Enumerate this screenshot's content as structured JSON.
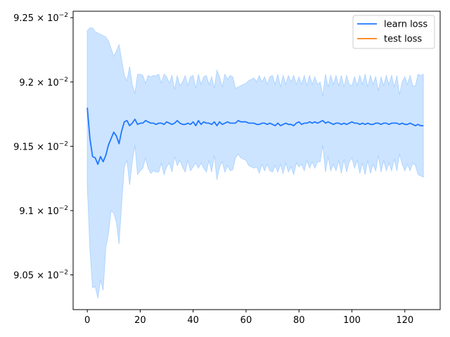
{
  "chart_data": {
    "type": "line",
    "title": "",
    "xlabel": "",
    "ylabel": "",
    "xlim": [
      -5.35,
      133.35
    ],
    "ylim": [
      0.09023,
      0.09255
    ],
    "x_ticks": [
      0,
      20,
      40,
      60,
      80,
      100,
      120
    ],
    "y_ticks": [
      {
        "value": 0.0905,
        "mantissa": "9.05",
        "exponent": "-2"
      },
      {
        "value": 0.091,
        "mantissa": "9.1",
        "exponent": "-2"
      },
      {
        "value": 0.0915,
        "mantissa": "9.15",
        "exponent": "-2"
      },
      {
        "value": 0.092,
        "mantissa": "9.2",
        "exponent": "-2"
      },
      {
        "value": 0.0925,
        "mantissa": "9.25",
        "exponent": "-2"
      }
    ],
    "tick_base": "10",
    "legend": {
      "placement": "top-right",
      "entries": [
        "learn loss",
        "test loss"
      ]
    },
    "colors": {
      "learn": "#1f77ff",
      "test": "#ff7f0e",
      "band": "#cce4ff",
      "band_edge": "#a8d0ff"
    },
    "series": [
      {
        "name": "learn loss",
        "x": [
          0,
          1,
          2,
          3,
          4,
          5,
          6,
          7,
          8,
          9,
          10,
          11,
          12,
          13,
          14,
          15,
          16,
          17,
          18,
          19,
          20,
          21,
          22,
          23,
          24,
          25,
          26,
          27,
          28,
          29,
          30,
          31,
          32,
          33,
          34,
          35,
          36,
          37,
          38,
          39,
          40,
          41,
          42,
          43,
          44,
          45,
          46,
          47,
          48,
          49,
          50,
          51,
          52,
          53,
          54,
          55,
          56,
          57,
          58,
          59,
          60,
          61,
          62,
          63,
          64,
          65,
          66,
          67,
          68,
          69,
          70,
          71,
          72,
          73,
          74,
          75,
          76,
          77,
          78,
          79,
          80,
          81,
          82,
          83,
          84,
          85,
          86,
          87,
          88,
          89,
          90,
          91,
          92,
          93,
          94,
          95,
          96,
          97,
          98,
          99,
          100,
          101,
          102,
          103,
          104,
          105,
          106,
          107,
          108,
          109,
          110,
          111,
          112,
          113,
          114,
          115,
          116,
          117,
          118,
          119,
          120,
          121,
          122,
          123,
          124,
          125,
          126,
          127
        ],
        "values": [
          0.0918,
          0.09156,
          0.09142,
          0.09141,
          0.09136,
          0.09142,
          0.09138,
          0.09143,
          0.09151,
          0.09156,
          0.09161,
          0.09158,
          0.09152,
          0.09162,
          0.09169,
          0.0917,
          0.09166,
          0.09168,
          0.09171,
          0.09167,
          0.09168,
          0.09168,
          0.0917,
          0.09169,
          0.09168,
          0.09168,
          0.09167,
          0.09168,
          0.09168,
          0.09167,
          0.09169,
          0.09168,
          0.09167,
          0.09168,
          0.0917,
          0.09168,
          0.09167,
          0.09167,
          0.09168,
          0.09167,
          0.09169,
          0.09166,
          0.0917,
          0.09167,
          0.09169,
          0.09168,
          0.09168,
          0.09167,
          0.09169,
          0.09166,
          0.09169,
          0.09167,
          0.09168,
          0.09169,
          0.09168,
          0.09168,
          0.09168,
          0.0917,
          0.09169,
          0.09169,
          0.09169,
          0.09168,
          0.09168,
          0.09168,
          0.09167,
          0.09167,
          0.09168,
          0.09168,
          0.09167,
          0.09168,
          0.09167,
          0.09166,
          0.09168,
          0.09166,
          0.09167,
          0.09168,
          0.09167,
          0.09167,
          0.09166,
          0.09168,
          0.09169,
          0.09167,
          0.09168,
          0.09168,
          0.09169,
          0.09168,
          0.09169,
          0.09168,
          0.09169,
          0.0917,
          0.09168,
          0.09169,
          0.09168,
          0.09167,
          0.09168,
          0.09168,
          0.09167,
          0.09168,
          0.09167,
          0.09168,
          0.09169,
          0.09168,
          0.09168,
          0.09167,
          0.09168,
          0.09167,
          0.09168,
          0.09167,
          0.09167,
          0.09168,
          0.09168,
          0.09167,
          0.09168,
          0.09168,
          0.09167,
          0.09168,
          0.09168,
          0.09168,
          0.09167,
          0.09168,
          0.09167,
          0.09167,
          0.09168,
          0.09167,
          0.09166,
          0.09167,
          0.09166,
          0.09166
        ],
        "upper": [
          0.0924,
          0.09242,
          0.09242,
          0.09239,
          0.09238,
          0.09237,
          0.09236,
          0.09235,
          0.09232,
          0.09226,
          0.0922,
          0.09224,
          0.09229,
          0.09217,
          0.09205,
          0.09201,
          0.09212,
          0.09198,
          0.09191,
          0.09206,
          0.09206,
          0.09205,
          0.09199,
          0.09205,
          0.09204,
          0.09205,
          0.09205,
          0.09206,
          0.09199,
          0.09206,
          0.09204,
          0.09199,
          0.09205,
          0.09194,
          0.09205,
          0.09197,
          0.092,
          0.09205,
          0.09197,
          0.09204,
          0.09205,
          0.09195,
          0.09206,
          0.09198,
          0.09204,
          0.09205,
          0.09198,
          0.09204,
          0.09195,
          0.09209,
          0.09204,
          0.09196,
          0.09206,
          0.09202,
          0.09205,
          0.09204,
          0.09195,
          0.09196,
          0.09197,
          0.09198,
          0.09199,
          0.09201,
          0.09202,
          0.09203,
          0.092,
          0.09205,
          0.092,
          0.09204,
          0.09198,
          0.09204,
          0.09205,
          0.09198,
          0.09206,
          0.09196,
          0.09205,
          0.09198,
          0.09205,
          0.092,
          0.09205,
          0.09198,
          0.09204,
          0.09198,
          0.09205,
          0.09197,
          0.09205,
          0.09198,
          0.09204,
          0.09198,
          0.092,
          0.09189,
          0.09206,
          0.09196,
          0.09205,
          0.09198,
          0.09205,
          0.09197,
          0.09205,
          0.09196,
          0.09205,
          0.09198,
          0.09197,
          0.09204,
          0.09197,
          0.09205,
          0.09198,
          0.09206,
          0.09196,
          0.09205,
          0.09198,
          0.09204,
          0.09193,
          0.09204,
          0.09197,
          0.09205,
          0.09198,
          0.09205,
          0.09196,
          0.09205,
          0.0919,
          0.092,
          0.09204,
          0.09198,
          0.09205,
          0.09197,
          0.09197,
          0.09206,
          0.09205,
          0.09206
        ],
        "lower": [
          0.0912,
          0.0907,
          0.0904,
          0.09041,
          0.09032,
          0.09046,
          0.09038,
          0.09071,
          0.09082,
          0.091,
          0.09098,
          0.09091,
          0.09074,
          0.09106,
          0.09134,
          0.09139,
          0.0912,
          0.09138,
          0.09151,
          0.09128,
          0.09131,
          0.09133,
          0.09141,
          0.09133,
          0.09129,
          0.09131,
          0.0913,
          0.0913,
          0.09137,
          0.09128,
          0.09134,
          0.09137,
          0.0913,
          0.09142,
          0.09135,
          0.09139,
          0.09134,
          0.0913,
          0.09139,
          0.09131,
          0.09134,
          0.09137,
          0.09133,
          0.09137,
          0.09133,
          0.0913,
          0.09139,
          0.0913,
          0.09143,
          0.09124,
          0.09134,
          0.09138,
          0.0913,
          0.09135,
          0.09131,
          0.09132,
          0.09141,
          0.09144,
          0.09141,
          0.0914,
          0.09139,
          0.09135,
          0.09134,
          0.09133,
          0.09134,
          0.09129,
          0.09136,
          0.09131,
          0.09136,
          0.09131,
          0.0913,
          0.09135,
          0.0913,
          0.09136,
          0.09129,
          0.09137,
          0.0913,
          0.09134,
          0.09128,
          0.09137,
          0.09134,
          0.09136,
          0.09131,
          0.09139,
          0.09133,
          0.09138,
          0.09133,
          0.09138,
          0.09138,
          0.09151,
          0.0913,
          0.09142,
          0.09131,
          0.09136,
          0.09131,
          0.09139,
          0.09129,
          0.0914,
          0.0913,
          0.09138,
          0.09141,
          0.09133,
          0.09139,
          0.09129,
          0.09137,
          0.09128,
          0.09139,
          0.09129,
          0.09136,
          0.09131,
          0.09143,
          0.0913,
          0.09139,
          0.09131,
          0.09137,
          0.09131,
          0.0914,
          0.09131,
          0.09144,
          0.09136,
          0.09131,
          0.09136,
          0.09131,
          0.09137,
          0.09135,
          0.09128,
          0.09127,
          0.09126
        ]
      },
      {
        "name": "test loss",
        "x": [],
        "values": []
      }
    ]
  }
}
